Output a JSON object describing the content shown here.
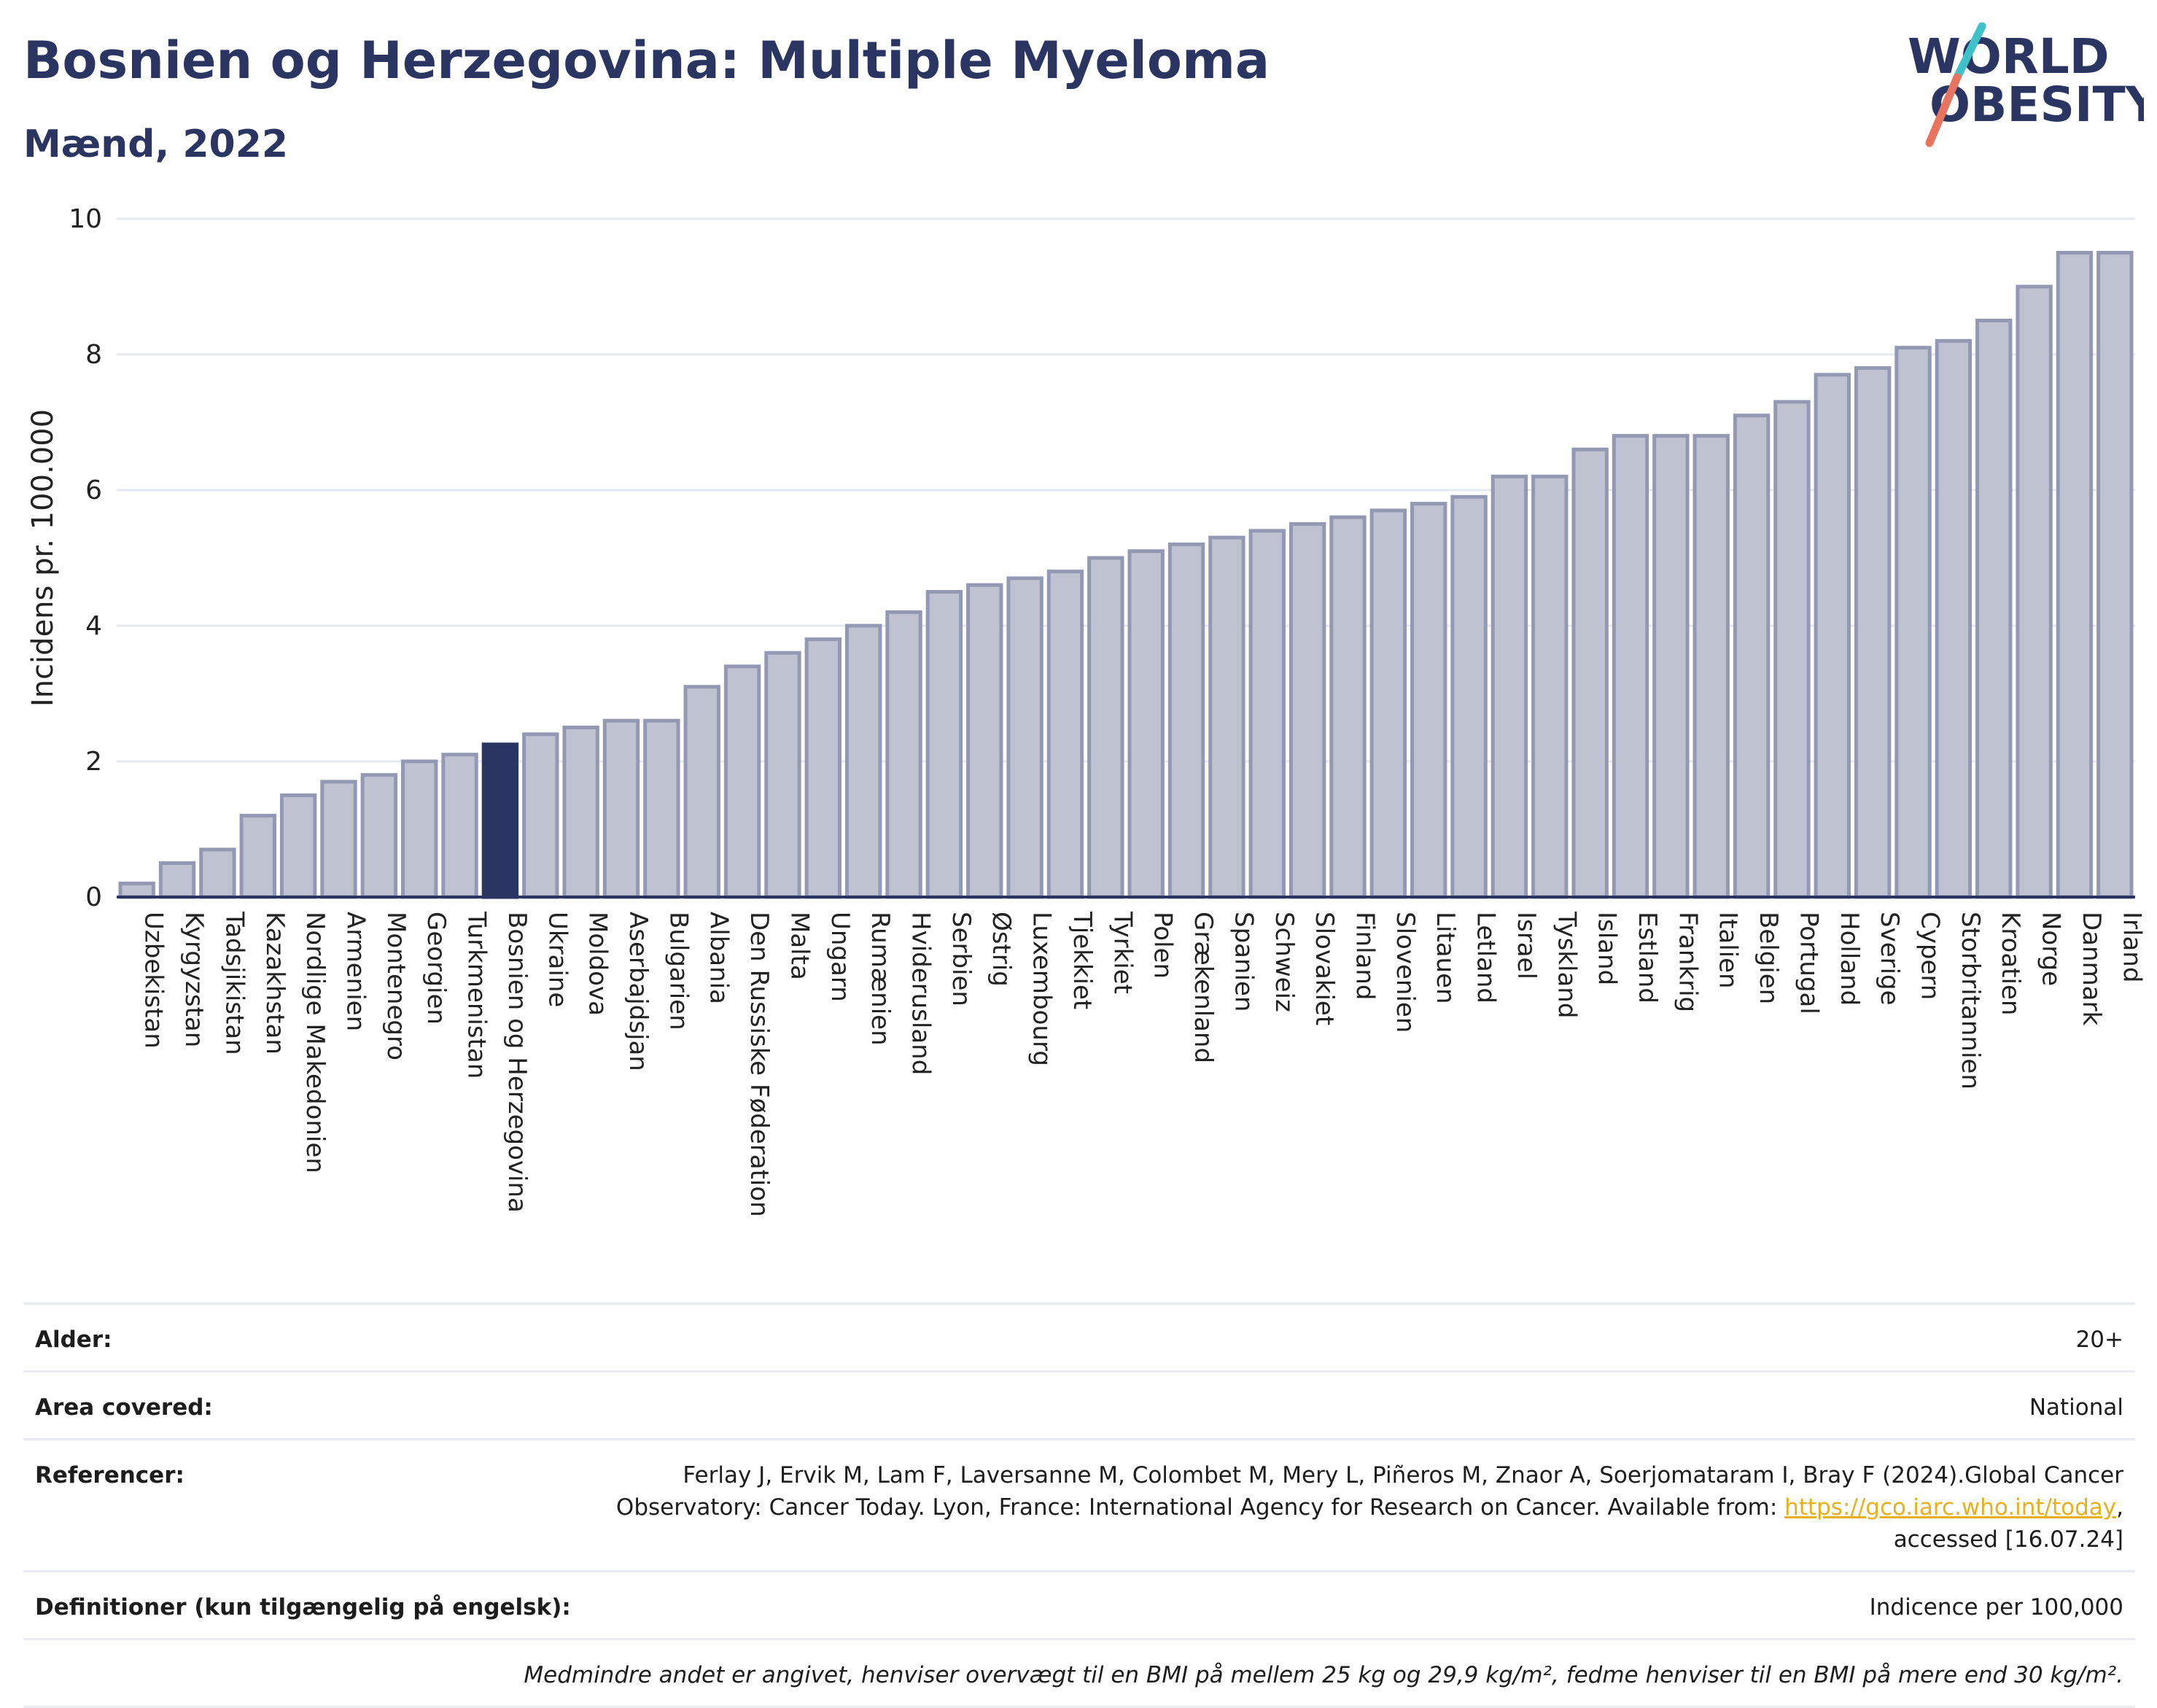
{
  "header": {
    "title": "Bosnien og Herzegovina: Multiple Myeloma",
    "subtitle": "Mænd, 2022"
  },
  "logo": {
    "line1": "WORLD",
    "line2": "OBESITY"
  },
  "colors": {
    "bar": "#bfc2d1",
    "bar_border": "#9499b3",
    "highlight": "#2b3561",
    "title": "#2b3561",
    "link": "#e9b01d"
  },
  "chart_data": {
    "type": "bar",
    "ylabel": "Incidens pr. 100.000",
    "ylim": [
      0,
      10
    ],
    "yticks": [
      0,
      2,
      4,
      6,
      8,
      10
    ],
    "grid": true,
    "highlight": "Bosnien og Herzegovina",
    "categories": [
      "Uzbekistan",
      "Kyrgyzstan",
      "Tadsjikistan",
      "Kazakhstan",
      "Nordlige Makedonien",
      "Armenien",
      "Montenegro",
      "Georgien",
      "Turkmenistan",
      "Bosnien og Herzegovina",
      "Ukraine",
      "Moldova",
      "Aserbajdsjan",
      "Bulgarien",
      "Albania",
      "Den Russiske Føderation",
      "Malta",
      "Ungarn",
      "Rumænien",
      "Hviderusland",
      "Serbien",
      "Østrig",
      "Luxembourg",
      "Tjekkiet",
      "Tyrkiet",
      "Polen",
      "Grækenland",
      "Spanien",
      "Schweiz",
      "Slovakiet",
      "Finland",
      "Slovenien",
      "Litauen",
      "Letland",
      "Israel",
      "Tyskland",
      "Island",
      "Estland",
      "Frankrig",
      "Italien",
      "Belgien",
      "Portugal",
      "Holland",
      "Sverige",
      "Cypern",
      "Storbritannien",
      "Kroatien",
      "Norge",
      "Danmark",
      "Irland"
    ],
    "values": [
      0.2,
      0.5,
      0.7,
      1.2,
      1.5,
      1.7,
      1.8,
      2.0,
      2.1,
      2.25,
      2.4,
      2.5,
      2.6,
      2.6,
      3.1,
      3.4,
      3.6,
      3.8,
      4.0,
      4.2,
      4.5,
      4.6,
      4.7,
      4.8,
      5.0,
      5.1,
      5.2,
      5.3,
      5.4,
      5.5,
      5.6,
      5.7,
      5.8,
      5.9,
      6.2,
      6.2,
      6.6,
      6.8,
      6.8,
      6.8,
      7.1,
      7.3,
      7.7,
      7.8,
      8.1,
      8.2,
      8.5,
      9.0,
      9.5,
      9.5
    ]
  },
  "meta": {
    "age_label": "Alder:",
    "age_value": "20+",
    "area_label": "Area covered:",
    "area_value": "National",
    "ref_label": "Referencer:",
    "ref_text_1": "Ferlay J, Ervik M, Lam F, Laversanne M, Colombet M, Mery L, Piñeros M, Znaor A, Soerjomataram I, Bray F (2024).Global Cancer",
    "ref_text_2": "Observatory: Cancer Today. Lyon, France: International Agency for Research on Cancer. Available from: ",
    "ref_link": "https://gco.iarc.who.int/today",
    "ref_text_3": ",",
    "ref_text_4": "accessed [16.07.24]",
    "def_label": "Definitioner (kun tilgængelig på engelsk):",
    "def_value": "Indicence per 100,000",
    "note": "Medmindre andet er angivet, henviser overvægt til en BMI på mellem 25 kg og 29,9 kg/m², fedme henviser til en BMI på mere end 30 kg/m²."
  }
}
